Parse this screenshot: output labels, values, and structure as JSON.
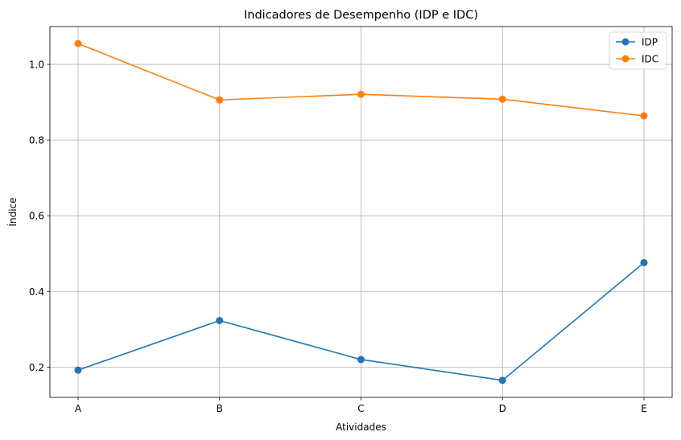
{
  "chart_data": {
    "type": "line",
    "title": "Indicadores de Desempenho (IDP e IDC)",
    "xlabel": "Atividades",
    "ylabel": "Índice",
    "categories": [
      "A",
      "B",
      "C",
      "D",
      "E"
    ],
    "ylim": [
      0.12,
      1.1
    ],
    "yticks": [
      0.2,
      0.4,
      0.6,
      0.8,
      1.0
    ],
    "ytick_labels": [
      "0.2",
      "0.4",
      "0.6",
      "0.8",
      "1.0"
    ],
    "grid": true,
    "legend_position": "top-right",
    "series": [
      {
        "name": "IDP",
        "color": "#1f77b4",
        "values": [
          0.192,
          0.323,
          0.22,
          0.165,
          0.476
        ]
      },
      {
        "name": "IDC",
        "color": "#ff7f0e",
        "values": [
          1.055,
          0.906,
          0.921,
          0.908,
          0.864
        ]
      }
    ]
  }
}
